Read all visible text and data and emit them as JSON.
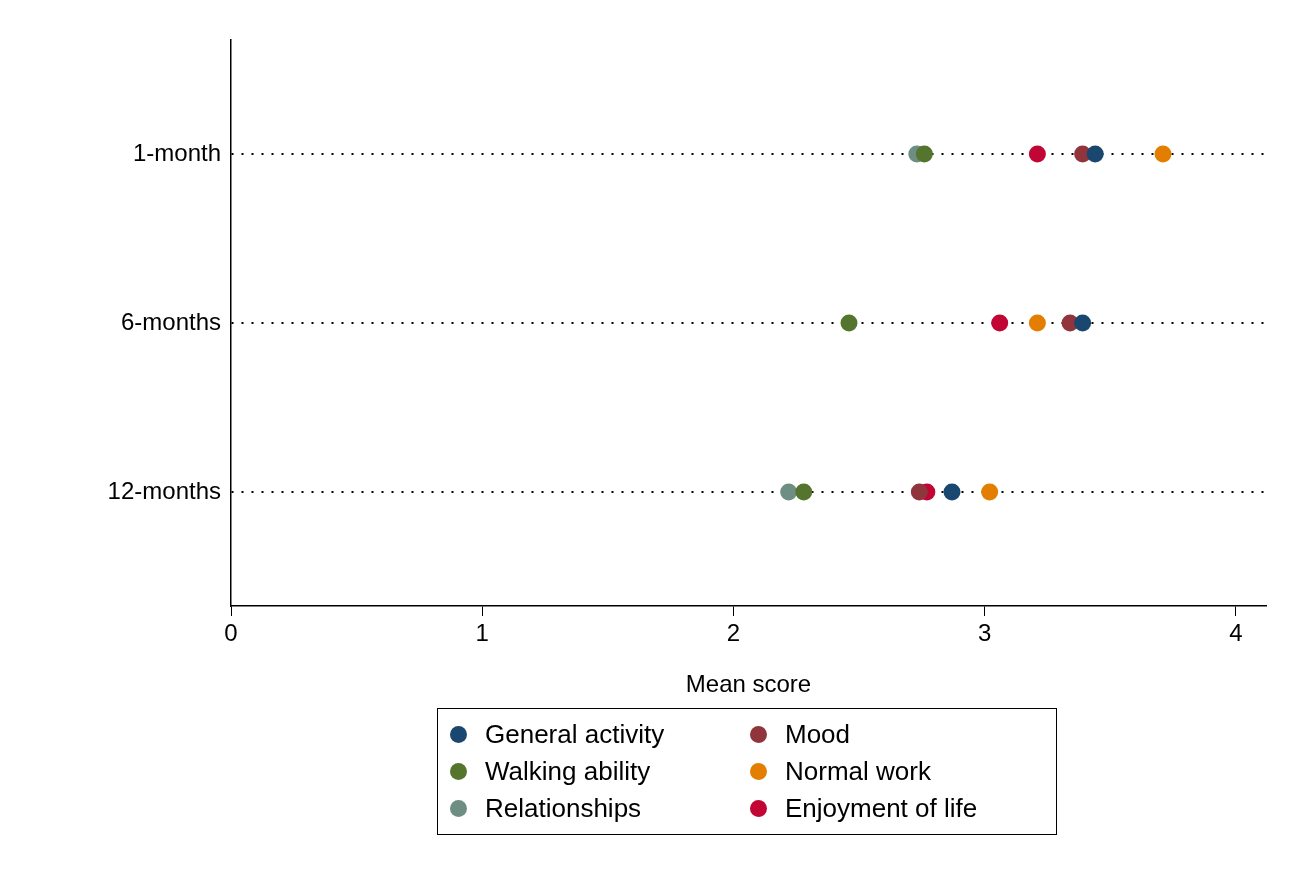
{
  "chart_data": {
    "type": "scatter",
    "xlabel": "Mean score",
    "categories": [
      "1-month",
      "6-months",
      "12-months"
    ],
    "xlim": [
      0,
      4.12
    ],
    "xticks": [
      0,
      1,
      2,
      3,
      4
    ],
    "grid": "y",
    "orientation": "horizontal",
    "legend": "bottom",
    "marker": "circle",
    "series": [
      {
        "name": "General activity",
        "color": "#1a476f",
        "values": [
          3.44,
          3.39,
          2.87
        ]
      },
      {
        "name": "Mood",
        "color": "#90353b",
        "values": [
          3.39,
          3.34,
          2.74
        ]
      },
      {
        "name": "Walking ability",
        "color": "#55752f",
        "values": [
          2.76,
          2.46,
          2.28
        ]
      },
      {
        "name": "Normal work",
        "color": "#e37e00",
        "values": [
          3.71,
          3.21,
          3.02
        ]
      },
      {
        "name": "Relationships",
        "color": "#6e8e84",
        "values": [
          2.73,
          null,
          2.22
        ]
      },
      {
        "name": "Enjoyment of life",
        "color": "#c10534",
        "values": [
          3.21,
          3.06,
          2.77
        ]
      }
    ]
  }
}
